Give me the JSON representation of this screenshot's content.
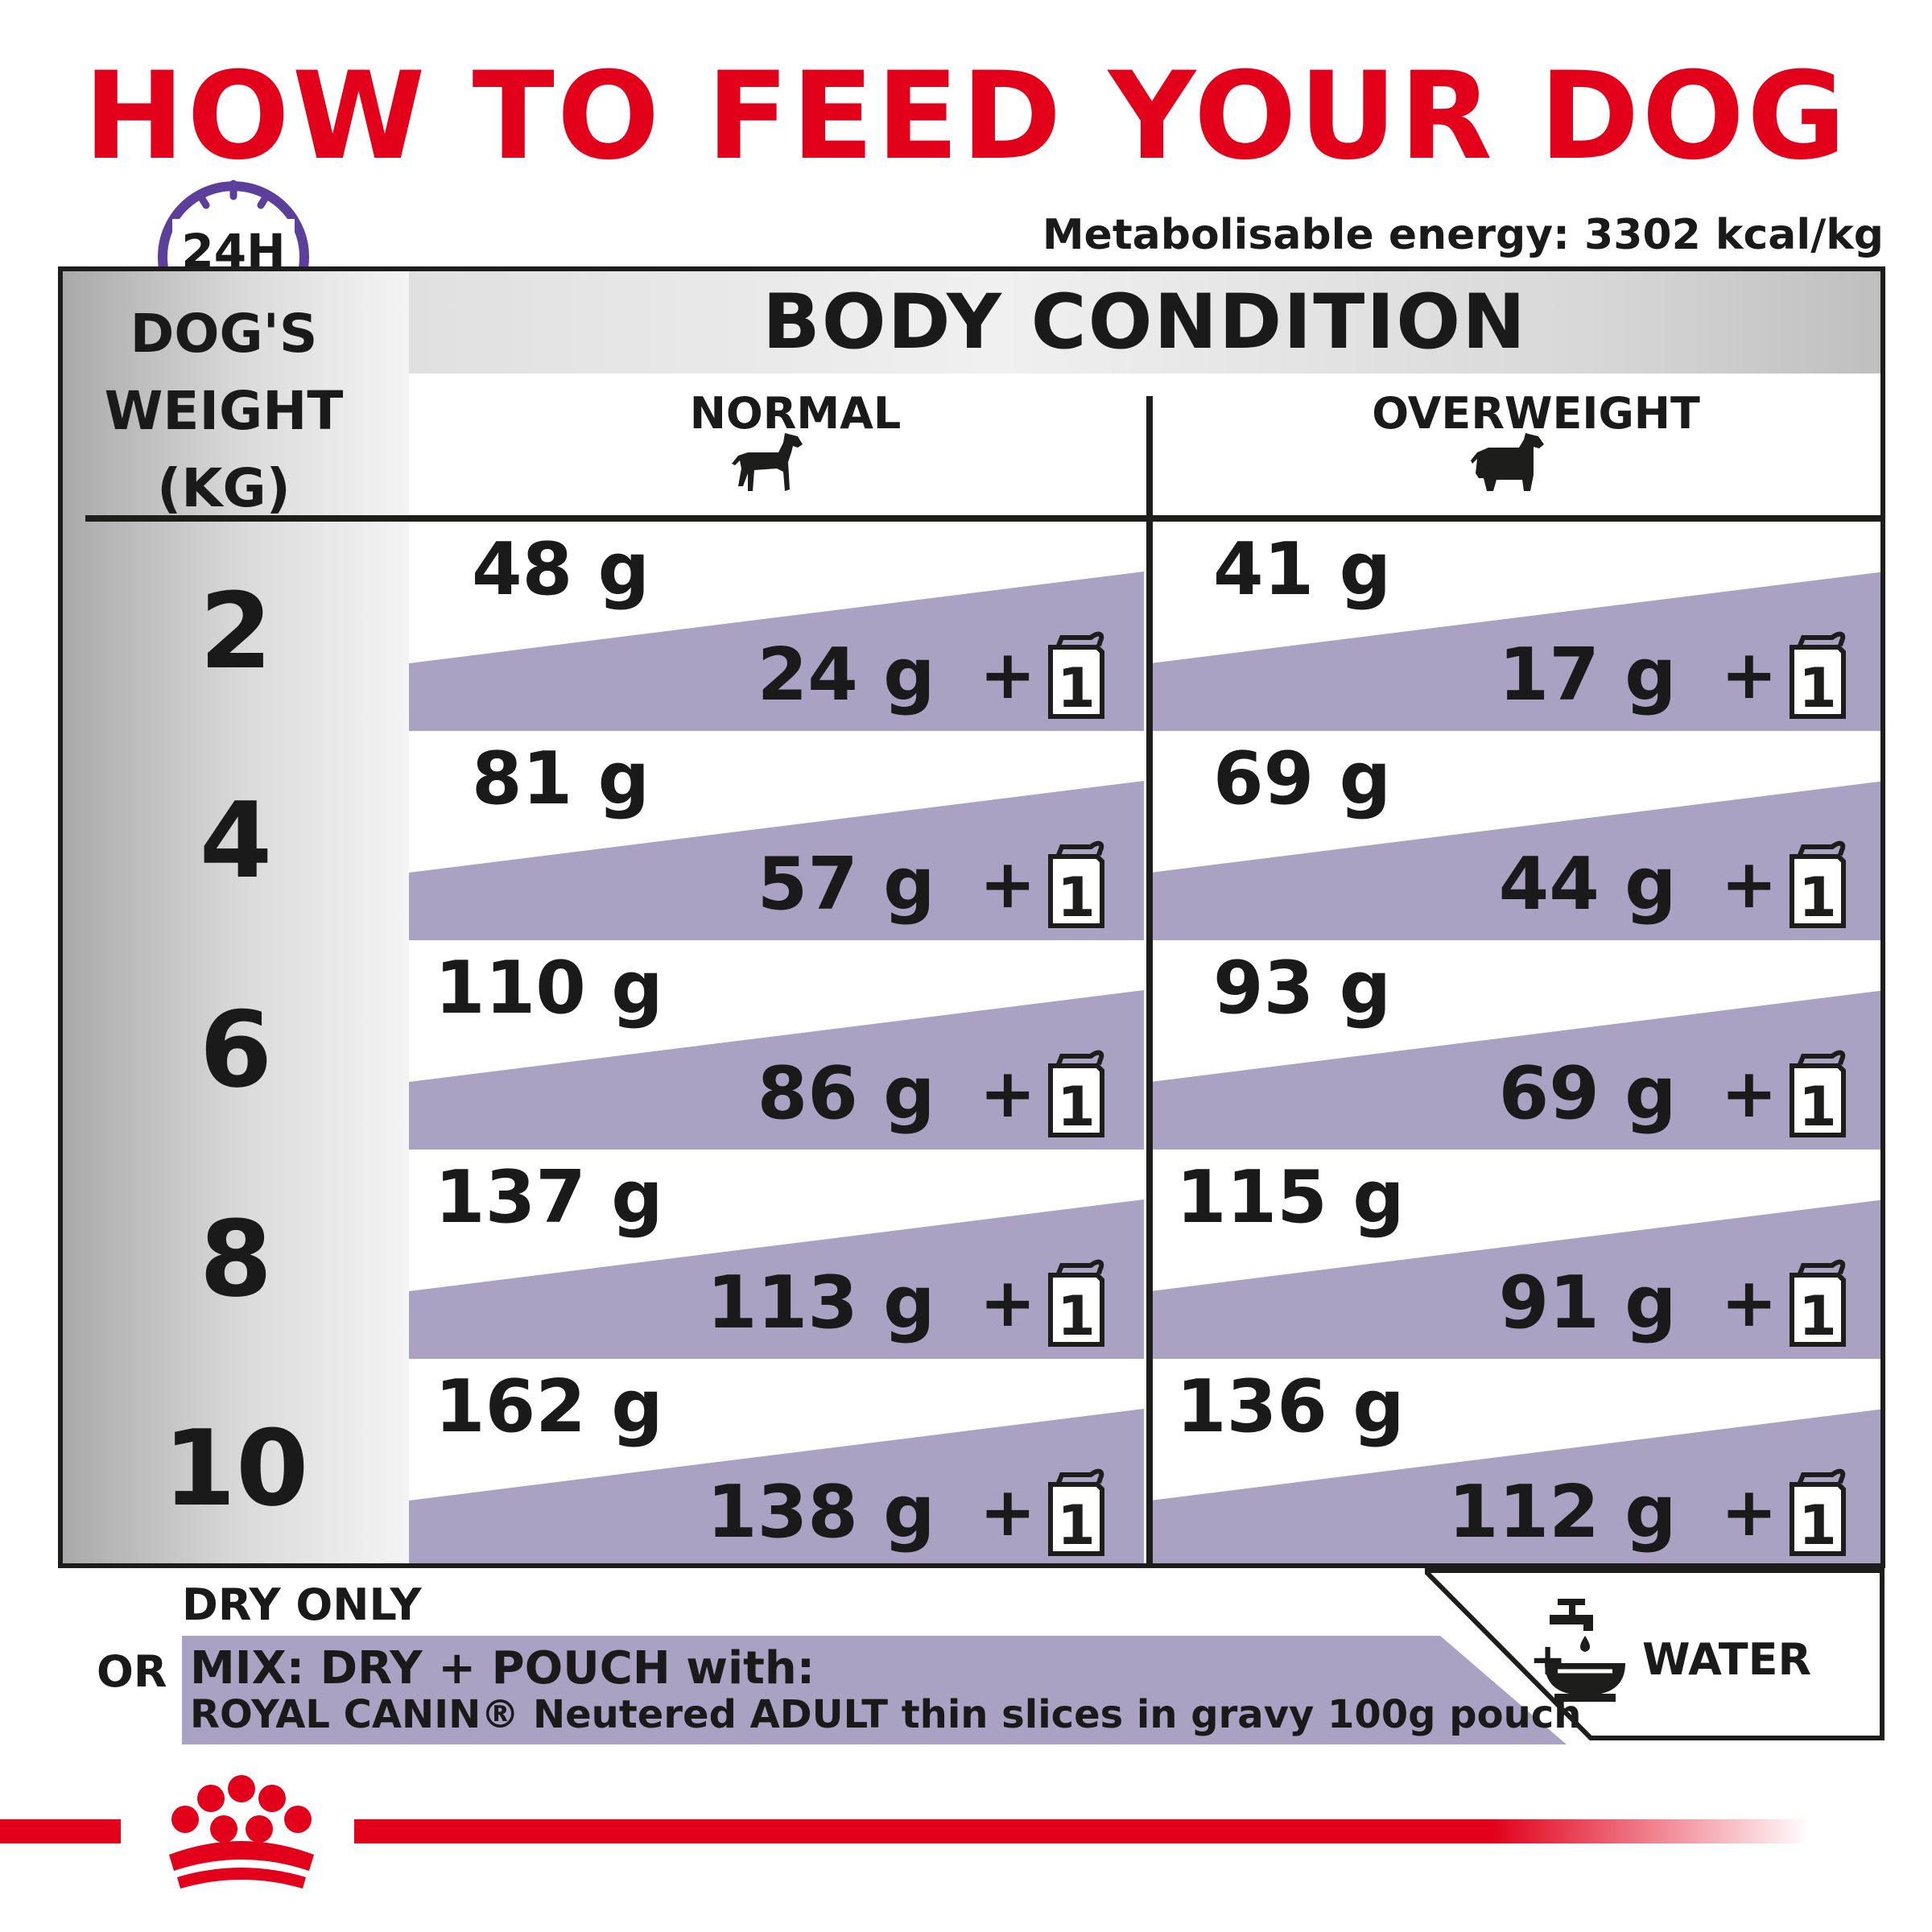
{
  "title": "HOW TO FEED YOUR DOG",
  "clock_label": "24H",
  "energy": "Metabolisable energy: 3302 kcal/kg",
  "weight_header": [
    "DOG'S",
    "WEIGHT",
    "(KG)"
  ],
  "body_condition": "BODY CONDITION",
  "conditions": {
    "normal": "NORMAL",
    "overweight": "OVERWEIGHT"
  },
  "pouch_count": "1",
  "plus": "+",
  "rows": [
    {
      "weight": "2",
      "normal": {
        "dry": "48 g",
        "mix": "24 g"
      },
      "overweight": {
        "dry": "41 g",
        "mix": "17 g"
      }
    },
    {
      "weight": "4",
      "normal": {
        "dry": "81 g",
        "mix": "57 g"
      },
      "overweight": {
        "dry": "69 g",
        "mix": "44 g"
      }
    },
    {
      "weight": "6",
      "normal": {
        "dry": "110 g",
        "mix": "86 g"
      },
      "overweight": {
        "dry": "93 g",
        "mix": "69 g"
      }
    },
    {
      "weight": "8",
      "normal": {
        "dry": "137 g",
        "mix": "113 g"
      },
      "overweight": {
        "dry": "115 g",
        "mix": "91 g"
      }
    },
    {
      "weight": "10",
      "normal": {
        "dry": "162 g",
        "mix": "138 g"
      },
      "overweight": {
        "dry": "136 g",
        "mix": "112 g"
      }
    }
  ],
  "legend": {
    "dry_only": "DRY ONLY",
    "or": "OR",
    "mix_title": "MIX: DRY + POUCH with:",
    "mix_product": "ROYAL CANIN® Neutered ADULT thin slices in gravy 100g pouch",
    "water_plus": "+",
    "water": "WATER"
  },
  "colors": {
    "red": "#e2001a",
    "purple": "#a9a2c3",
    "clock": "#5b3f9a",
    "text": "#1a1a1a"
  },
  "icons": {
    "clock": "clock-icon",
    "dog_normal": "dog-normal-icon",
    "dog_overweight": "dog-overweight-icon",
    "pouch": "pouch-icon",
    "water": "water-tap-icon",
    "logo": "crown-logo"
  }
}
